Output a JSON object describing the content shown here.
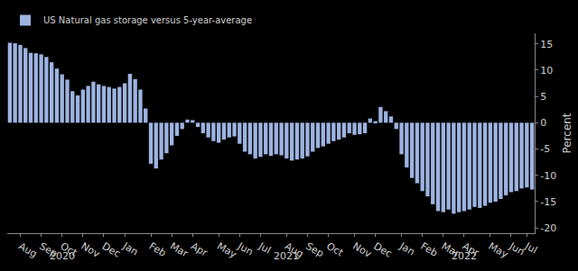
{
  "chart_data": {
    "type": "bar",
    "categories": [
      null,
      null,
      "Aug",
      null,
      null,
      null,
      "Sep",
      null,
      null,
      null,
      "Oct",
      null,
      null,
      null,
      "Nov",
      null,
      null,
      null,
      "Dec",
      null,
      null,
      null,
      "Jan",
      null,
      null,
      null,
      null,
      "Feb",
      null,
      null,
      null,
      "Mar",
      null,
      null,
      null,
      "Apr",
      null,
      null,
      null,
      null,
      "May",
      null,
      null,
      null,
      "Jun",
      null,
      null,
      null,
      "Jul",
      null,
      null,
      null,
      null,
      "Aug",
      null,
      null,
      null,
      "Sep",
      null,
      null,
      null,
      "Oct",
      null,
      null,
      null,
      null,
      "Nov",
      null,
      null,
      null,
      "Dec",
      null,
      null,
      null,
      null,
      "Jan",
      null,
      null,
      null,
      "Feb",
      null,
      null,
      null,
      "Mar",
      null,
      null,
      null,
      "Apr",
      null,
      null,
      null,
      null,
      "May",
      null,
      null,
      null,
      "Jun",
      null,
      null,
      "Jul",
      null
    ],
    "series": [
      {
        "name": "US Natural gas storage versus 5-year-average",
        "color": "#9db3e0",
        "values": [
          15.2,
          15.1,
          14.8,
          14.2,
          13.3,
          13.2,
          13.0,
          12.5,
          11.5,
          10.3,
          9.2,
          8.2,
          6.0,
          5.2,
          6.3,
          7.0,
          7.8,
          7.3,
          7.0,
          6.8,
          6.5,
          6.8,
          7.5,
          9.3,
          8.3,
          6.3,
          2.7,
          -7.8,
          -8.7,
          -7.0,
          -5.8,
          -4.3,
          -2.5,
          -1.2,
          0.6,
          0.5,
          -0.8,
          -2.0,
          -2.8,
          -3.5,
          -3.8,
          -3.2,
          -2.8,
          -2.6,
          -4.0,
          -5.5,
          -6.0,
          -6.8,
          -6.5,
          -6.0,
          -6.3,
          -6.0,
          -6.2,
          -6.8,
          -7.2,
          -7.0,
          -6.8,
          -6.4,
          -5.5,
          -4.8,
          -4.5,
          -4.0,
          -3.5,
          -3.2,
          -2.8,
          -2.0,
          -2.3,
          -2.2,
          -2.0,
          0.8,
          0.3,
          3.0,
          2.2,
          1.2,
          -1.2,
          -6.0,
          -8.5,
          -10.5,
          -11.5,
          -13.0,
          -14.0,
          -15.5,
          -16.8,
          -17.0,
          -16.5,
          -17.3,
          -17.0,
          -16.8,
          -16.5,
          -16.0,
          -16.2,
          -15.8,
          -15.2,
          -15.0,
          -14.5,
          -13.8,
          -13.2,
          -13.0,
          -12.5,
          -12.3,
          -12.7
        ]
      }
    ],
    "y_label": "Percent",
    "ylim": [
      -21,
      17
    ],
    "yticks": [
      -20,
      -15,
      -10,
      -5,
      0,
      5,
      10,
      15
    ],
    "annotations": [
      {
        "text": "2020",
        "x": 10
      },
      {
        "text": "2021",
        "x": 53
      },
      {
        "text": "2022",
        "x": 87
      }
    ],
    "grid": false,
    "legend": "upper left"
  }
}
